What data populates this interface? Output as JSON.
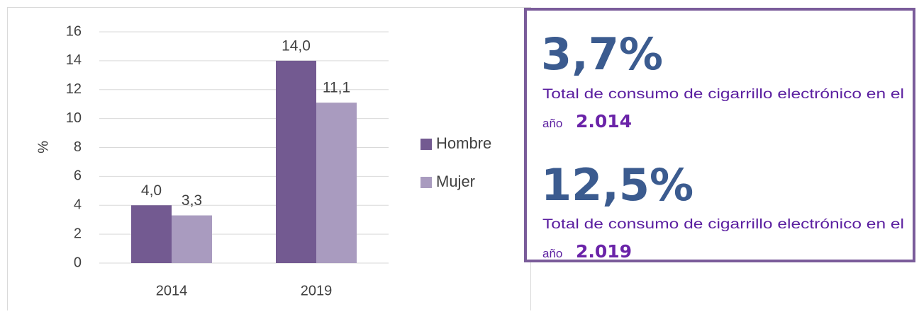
{
  "chart_data": {
    "type": "bar",
    "ylabel": "%",
    "categories": [
      "2014",
      "2019"
    ],
    "series": [
      {
        "name": "Hombre",
        "color": "#735a91",
        "values": [
          4.0,
          14.0
        ],
        "value_labels": [
          "4,0",
          "14,0"
        ]
      },
      {
        "name": "Mujer",
        "color": "#a99bbf",
        "values": [
          3.3,
          11.1
        ],
        "value_labels": [
          "3,3",
          "11,1"
        ]
      }
    ],
    "ylim": [
      0,
      16
    ],
    "yticks": [
      0,
      2,
      4,
      6,
      8,
      10,
      12,
      14,
      16
    ],
    "grid": true,
    "legend": "right"
  },
  "panel": {
    "stats": [
      {
        "percent": "3,7%",
        "description": "Total de consumo de cigarrillo electrónico en el",
        "year_prefix": "año",
        "year": "2.014"
      },
      {
        "percent": "12,5%",
        "description": "Total de consumo de cigarrillo electrónico en el",
        "year_prefix": "año",
        "year": "2.019"
      }
    ]
  }
}
